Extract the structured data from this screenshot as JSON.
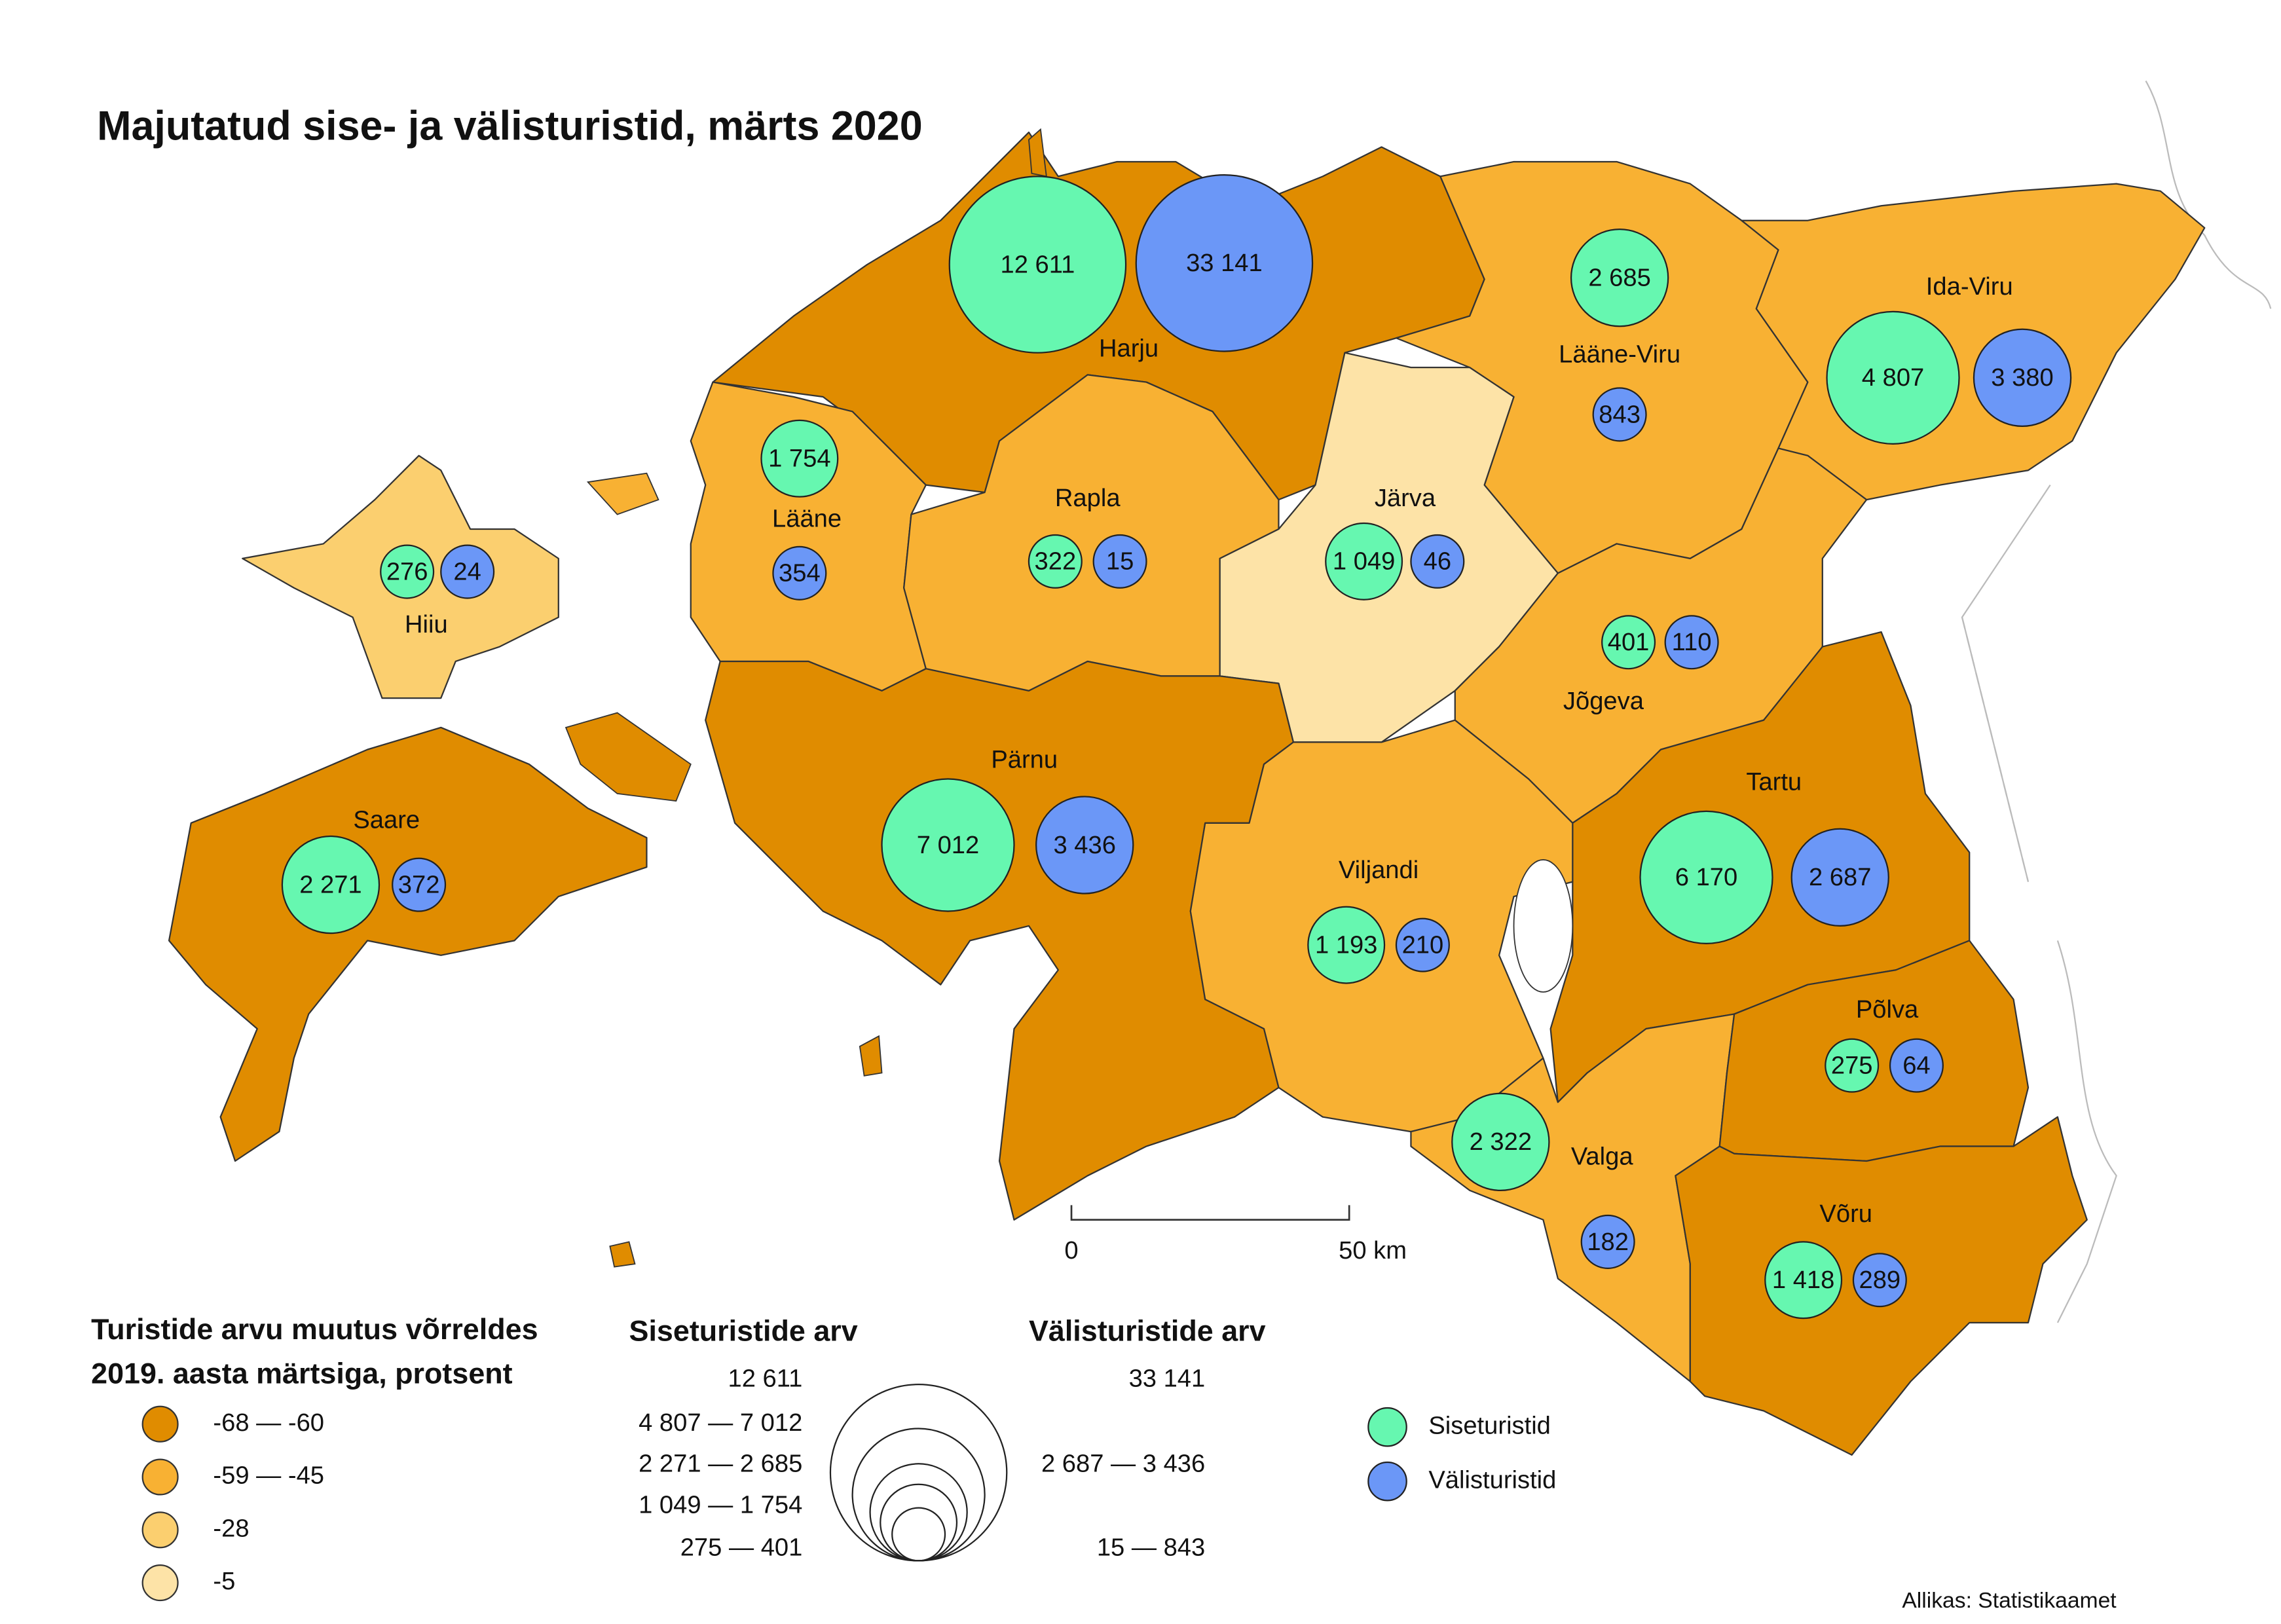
{
  "title": "Majutatud sise- ja välisturistid, märts 2020",
  "regions": [
    {
      "name": "Harju",
      "color": "#e08c00",
      "domestic": {
        "value": 12611,
        "label": "12 611"
      },
      "foreign": {
        "value": 33141,
        "label": "33 141"
      }
    },
    {
      "name": "Lääne-Viru",
      "color": "#f8b133",
      "domestic": {
        "value": 2685,
        "label": "2 685"
      },
      "foreign": {
        "value": 843,
        "label": "843"
      }
    },
    {
      "name": "Ida-Viru",
      "color": "#f8b133",
      "domestic": {
        "value": 4807,
        "label": "4 807"
      },
      "foreign": {
        "value": 3380,
        "label": "3 380"
      }
    },
    {
      "name": "Lääne",
      "color": "#f8b133",
      "domestic": {
        "value": 1754,
        "label": "1 754"
      },
      "foreign": {
        "value": 354,
        "label": "354"
      }
    },
    {
      "name": "Rapla",
      "color": "#f8b133",
      "domestic": {
        "value": 322,
        "label": "322"
      },
      "foreign": {
        "value": 15,
        "label": "15"
      }
    },
    {
      "name": "Järva",
      "color": "#fde3a7",
      "domestic": {
        "value": 1049,
        "label": "1 049"
      },
      "foreign": {
        "value": 46,
        "label": "46"
      }
    },
    {
      "name": "Hiiu",
      "color": "#fbcf6f",
      "domestic": {
        "value": 276,
        "label": "276"
      },
      "foreign": {
        "value": 24,
        "label": "24"
      }
    },
    {
      "name": "Saare",
      "color": "#e08c00",
      "domestic": {
        "value": 2271,
        "label": "2 271"
      },
      "foreign": {
        "value": 372,
        "label": "372"
      }
    },
    {
      "name": "Pärnu",
      "color": "#e08c00",
      "domestic": {
        "value": 7012,
        "label": "7 012"
      },
      "foreign": {
        "value": 3436,
        "label": "3 436"
      }
    },
    {
      "name": "Jõgeva",
      "color": "#f8b133",
      "domestic": {
        "value": 401,
        "label": "401"
      },
      "foreign": {
        "value": 110,
        "label": "110"
      }
    },
    {
      "name": "Tartu",
      "color": "#e08c00",
      "domestic": {
        "value": 6170,
        "label": "6 170"
      },
      "foreign": {
        "value": 2687,
        "label": "2 687"
      }
    },
    {
      "name": "Viljandi",
      "color": "#f8b133",
      "domestic": {
        "value": 1193,
        "label": "1 193"
      },
      "foreign": {
        "value": 210,
        "label": "210"
      }
    },
    {
      "name": "Valga",
      "color": "#f8b133",
      "domestic": {
        "value": 2322,
        "label": "2 322"
      },
      "foreign": {
        "value": 182,
        "label": "182"
      }
    },
    {
      "name": "Põlva",
      "color": "#e08c00",
      "domestic": {
        "value": 275,
        "label": "275"
      },
      "foreign": {
        "value": 64,
        "label": "64"
      }
    },
    {
      "name": "Võru",
      "color": "#e08c00",
      "domestic": {
        "value": 1418,
        "label": "1 418"
      },
      "foreign": {
        "value": 289,
        "label": "289"
      }
    }
  ],
  "change_legend": {
    "title": [
      "Turistide arvu muutus võrreldes",
      "2019. aasta märtsiga, protsent"
    ],
    "items": [
      {
        "label": "-68 — -60",
        "color": "#e08c00"
      },
      {
        "label": "-59 — -45",
        "color": "#f8b133"
      },
      {
        "label": "-28",
        "color": "#fbcf6f"
      },
      {
        "label": "-5",
        "color": "#fde3a7"
      }
    ]
  },
  "size_legend": {
    "domestic_title": "Siseturistide arv",
    "foreign_title": "Välisturistide arv",
    "rows": [
      {
        "domestic": {
          "label": "12 611",
          "min": 12611,
          "max": 12611
        },
        "foreign": {
          "label": "33 141",
          "min": 33141,
          "max": 33141
        }
      },
      {
        "domestic": {
          "label": "4 807 — 7 012",
          "min": 4807,
          "max": 7012
        },
        "foreign": null
      },
      {
        "domestic": {
          "label": "2 271 — 2 685",
          "min": 2271,
          "max": 2685
        },
        "foreign": {
          "label": "2 687 — 3 436",
          "min": 2687,
          "max": 3436
        }
      },
      {
        "domestic": {
          "label": "1 049 — 1 754",
          "min": 1049,
          "max": 1754
        },
        "foreign": null
      },
      {
        "domestic": {
          "label": "275 — 401",
          "min": 275,
          "max": 401
        },
        "foreign": {
          "label": "15 — 843",
          "min": 15,
          "max": 843
        }
      }
    ]
  },
  "series_legend": [
    {
      "name": "Siseturistid",
      "color": "#66f7b0"
    },
    {
      "name": "Välisturistid",
      "color": "#6b97f7"
    }
  ],
  "scale_bar": {
    "start": "0",
    "end": "50 km"
  },
  "source": "Allikas: Statistikaamet"
}
